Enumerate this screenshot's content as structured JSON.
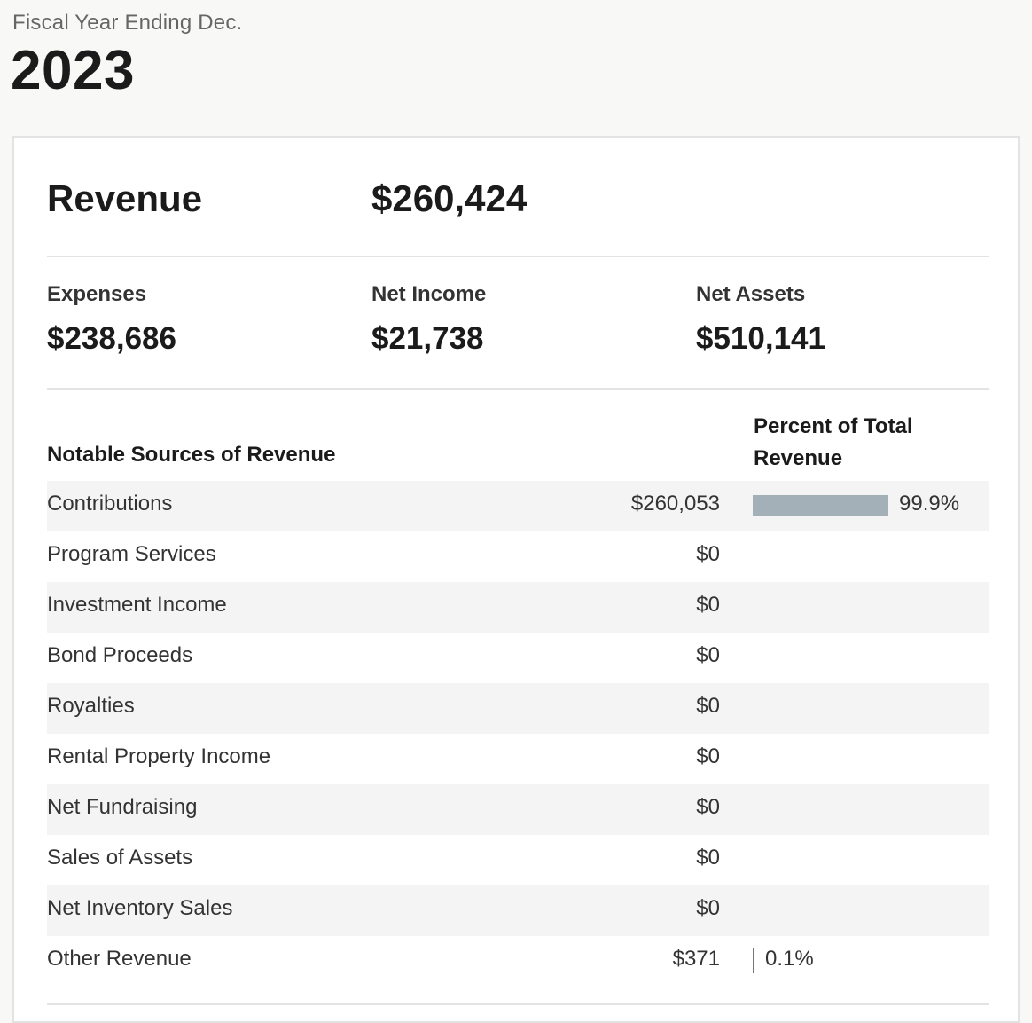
{
  "header": {
    "fiscal_label": "Fiscal Year Ending Dec.",
    "year": "2023"
  },
  "summary": {
    "revenue_label": "Revenue",
    "revenue_value": "$260,424",
    "stats": [
      {
        "label": "Expenses",
        "value": "$238,686"
      },
      {
        "label": "Net Income",
        "value": "$21,738"
      },
      {
        "label": "Net Assets",
        "value": "$510,141"
      }
    ]
  },
  "table": {
    "sources_header": "Notable Sources of Revenue",
    "percent_header": "Percent of Total Revenue",
    "bar_color": "#a3b0b8",
    "rows": [
      {
        "name": "Contributions",
        "amount": "$260,053",
        "percent": "99.9%",
        "percent_value": 99.9
      },
      {
        "name": "Program Services",
        "amount": "$0",
        "percent": "",
        "percent_value": 0
      },
      {
        "name": "Investment Income",
        "amount": "$0",
        "percent": "",
        "percent_value": 0
      },
      {
        "name": "Bond Proceeds",
        "amount": "$0",
        "percent": "",
        "percent_value": 0
      },
      {
        "name": "Royalties",
        "amount": "$0",
        "percent": "",
        "percent_value": 0
      },
      {
        "name": "Rental Property Income",
        "amount": "$0",
        "percent": "",
        "percent_value": 0
      },
      {
        "name": "Net Fundraising",
        "amount": "$0",
        "percent": "",
        "percent_value": 0
      },
      {
        "name": "Sales of Assets",
        "amount": "$0",
        "percent": "",
        "percent_value": 0
      },
      {
        "name": "Net Inventory Sales",
        "amount": "$0",
        "percent": "",
        "percent_value": 0
      },
      {
        "name": "Other Revenue",
        "amount": "$371",
        "percent": "0.1%",
        "percent_value": 0.1
      }
    ]
  }
}
